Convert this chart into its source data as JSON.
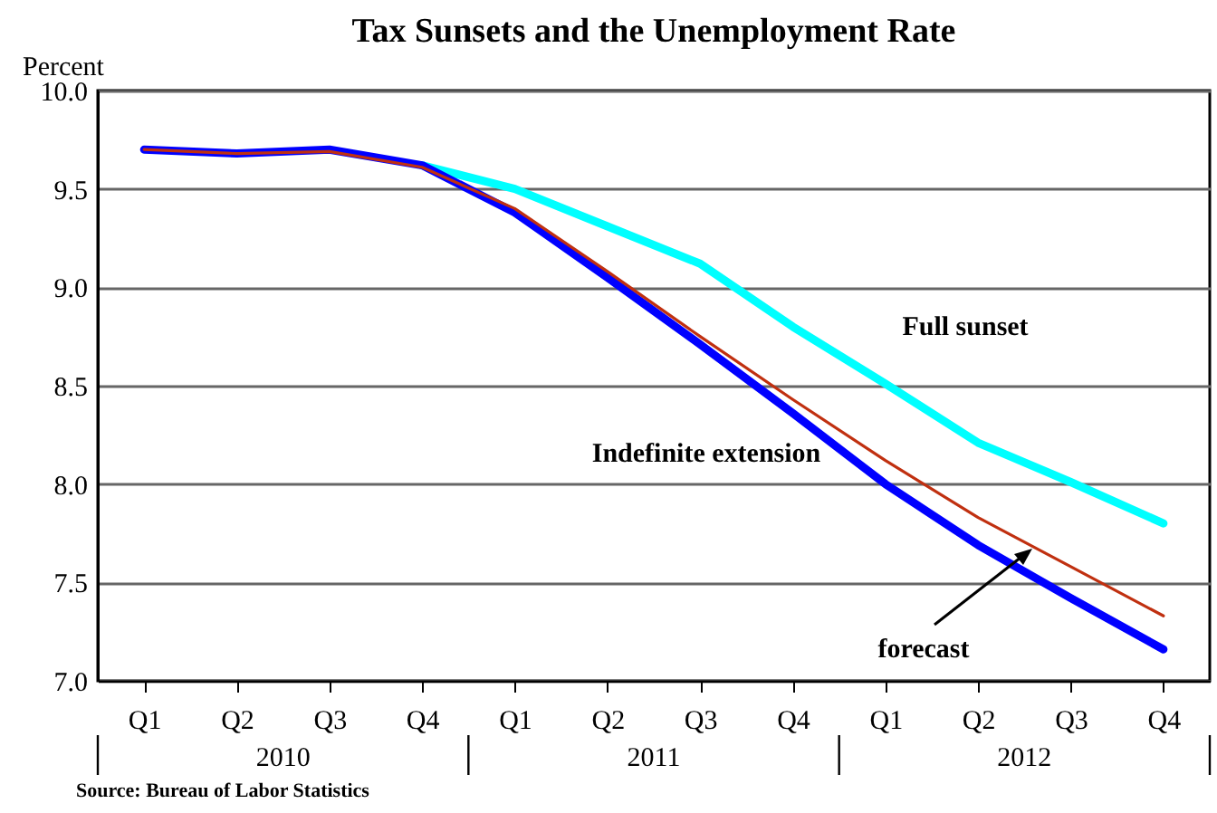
{
  "chart_data": {
    "type": "line",
    "title": "Tax Sunsets and the Unemployment Rate",
    "ylabel": "Percent",
    "categories": [
      "Q1",
      "Q2",
      "Q3",
      "Q4",
      "Q1",
      "Q2",
      "Q3",
      "Q4",
      "Q1",
      "Q2",
      "Q3",
      "Q4"
    ],
    "series": [
      {
        "name": "Full sunset",
        "color": "#00ffff",
        "values": [
          null,
          null,
          null,
          9.62,
          9.5,
          9.31,
          9.12,
          8.8,
          8.51,
          8.21,
          8.01,
          7.8
        ]
      },
      {
        "name": "Indefinite extension",
        "color": "#0000ff",
        "values": [
          9.7,
          9.68,
          9.7,
          9.62,
          9.38,
          9.05,
          8.71,
          8.36,
          8.0,
          7.69,
          7.42,
          7.16
        ]
      },
      {
        "name": "forecast",
        "color": "#c03010",
        "values": [
          9.7,
          9.68,
          9.69,
          9.61,
          9.4,
          9.08,
          8.75,
          8.43,
          8.12,
          7.83,
          7.58,
          7.33
        ]
      }
    ],
    "ylim": [
      7,
      10
    ],
    "yticks": [
      {
        "value": 7,
        "label": "7.0"
      },
      {
        "value": 7.5,
        "label": "7.5"
      },
      {
        "value": 8,
        "label": "8.0"
      },
      {
        "value": 8.5,
        "label": "8.5"
      },
      {
        "value": 9,
        "label": "9.0"
      },
      {
        "value": 9.5,
        "label": "9.5"
      },
      {
        "value": 10,
        "label": "10.0"
      }
    ],
    "grid": "y",
    "annotations": [
      "2010",
      "2011",
      "2012",
      "Source: Bureau of Labor Statistics"
    ]
  }
}
